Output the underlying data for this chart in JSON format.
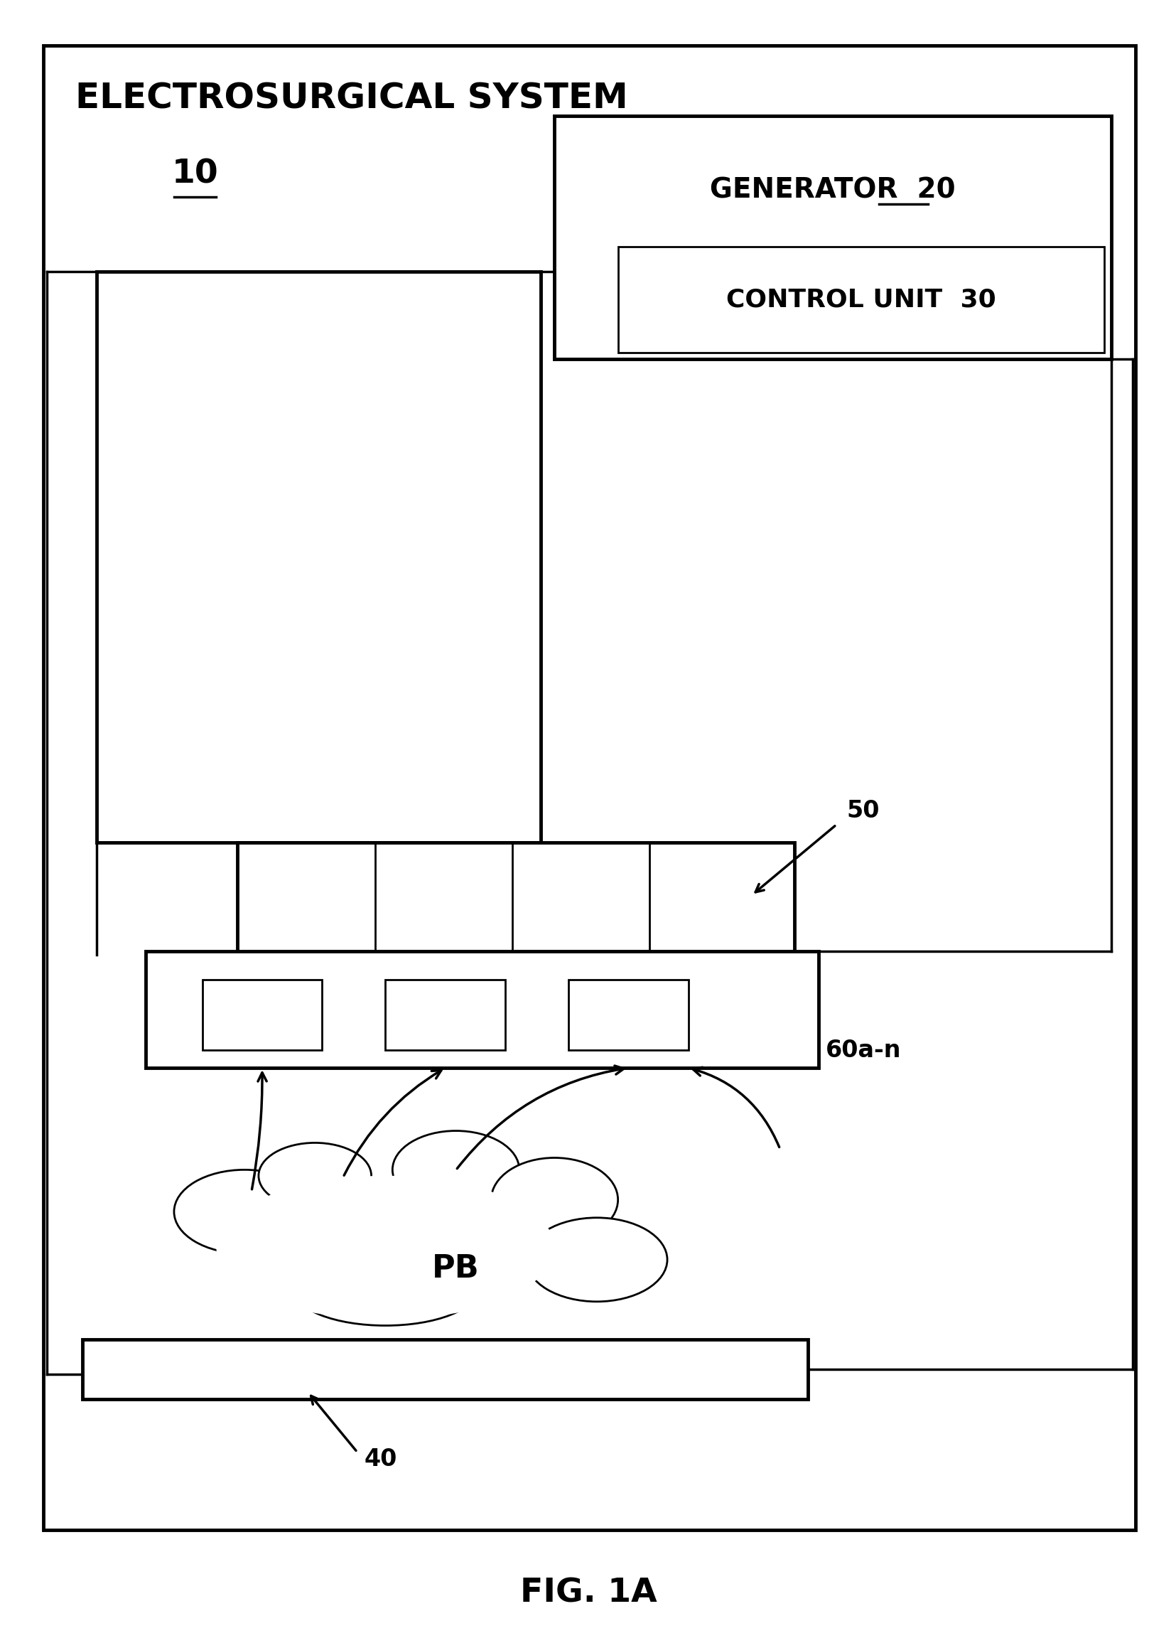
{
  "fig_width": 16.56,
  "fig_height": 23.11,
  "bg_color": "#ffffff",
  "title_system": "ELECTROSURGICAL SYSTEM",
  "label_10": "10",
  "label_generator": "GENERATOR",
  "label_20": "20",
  "label_control": "CONTROL UNIT",
  "label_30": "30",
  "label_50": "50",
  "label_60": "60a-n",
  "label_40": "40",
  "label_PB": "PB",
  "label_fig": "FIG. 1A"
}
